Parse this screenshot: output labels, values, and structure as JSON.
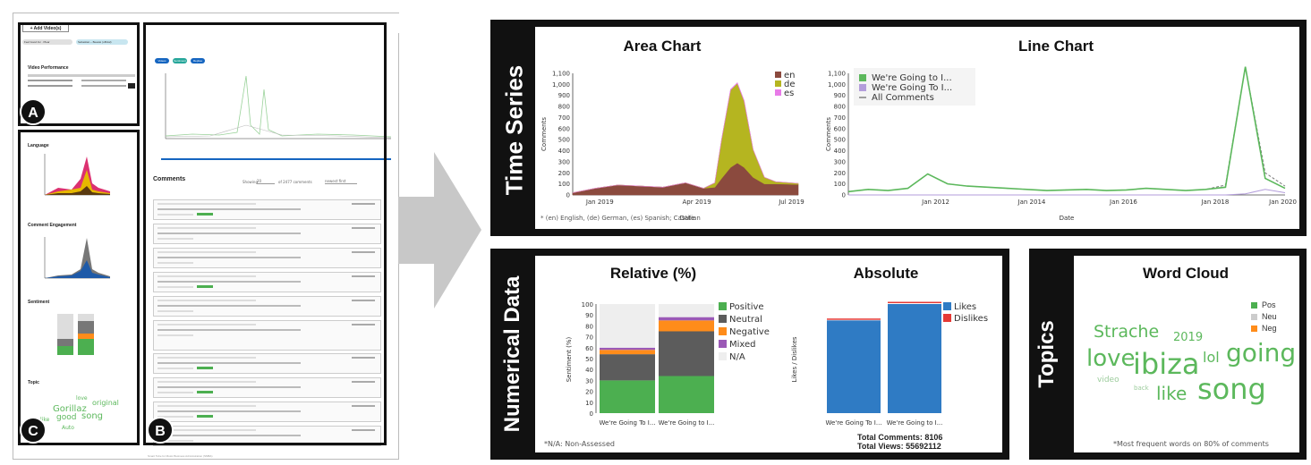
{
  "app": {
    "add_videos": "+ Add Video(s)",
    "chip_1": "Feel Good Inc · Plear",
    "chip_2": "Sebastian – Beauté (official)",
    "video_performance": "Video Performance",
    "language": "Language",
    "comment_engagement": "Comment Engagement",
    "sentiment": "Sentiment",
    "topic": "Topic",
    "comments": "Comments",
    "showing": "Showing",
    "show_count": "20",
    "of_comments": "of 2477 comments",
    "sort_label": "newest first",
    "mini_btn_1": "Videos",
    "mini_btn_2": "Sentiment",
    "mini_btn_3": "Replies",
    "mini_topic_words": [
      "love",
      "Gorillaz",
      "original",
      "like",
      "good",
      "song",
      "Auto"
    ],
    "footer_text": "Smart Tube for Music Business Administration (SMBA)"
  },
  "badges": {
    "a": "A",
    "b": "B",
    "c": "C"
  },
  "time_series": {
    "side_label": "Time Series",
    "area": {
      "title": "Area Chart",
      "ylabel": "Comments",
      "xlabel": "Date",
      "footnote": "* (en) English, (de) German, (es) Spanish; Castilian"
    },
    "line": {
      "title": "Line Chart",
      "ylabel": "Comments",
      "xlabel": "Date"
    }
  },
  "numerical": {
    "side_label": "Numerical Data",
    "relative": {
      "title": "Relative (%)",
      "ylabel": "Sentiment (%)",
      "footnote": "*N/A: Non-Assessed"
    },
    "absolute": {
      "title": "Absolute",
      "ylabel": "Likes / Dislikes",
      "total_comments": "Total Comments: 8106",
      "total_views": "Total Views: 55692112"
    }
  },
  "topics": {
    "side_label": "Topics",
    "title": "Word Cloud",
    "legend": [
      {
        "label": "Pos",
        "color": "#4caf50"
      },
      {
        "label": "Neu",
        "color": "#cccccc"
      },
      {
        "label": "Neg",
        "color": "#ff8c1a"
      }
    ],
    "words": [
      {
        "text": "Strache",
        "color": "#5cb85c"
      },
      {
        "text": "2019",
        "color": "#5cb85c"
      },
      {
        "text": "love",
        "color": "#5cb85c"
      },
      {
        "text": "ibiza",
        "color": "#5cb85c"
      },
      {
        "text": "lol",
        "color": "#5cb85c"
      },
      {
        "text": "going",
        "color": "#5cb85c"
      },
      {
        "text": "video",
        "color": "#9ccc9c"
      },
      {
        "text": "back",
        "color": "#9ccc9c"
      },
      {
        "text": "like",
        "color": "#5cb85c"
      },
      {
        "text": "song",
        "color": "#5cb85c"
      }
    ],
    "footnote": "*Most frequent words on 80% of comments"
  },
  "chart_data": [
    {
      "type": "area",
      "title": "Area Chart",
      "xlabel": "Date",
      "ylabel": "Comments",
      "x_ticks": [
        "Jan 2019",
        "Apr 2019",
        "Jul 2019"
      ],
      "y_ticks": [
        0,
        100,
        200,
        300,
        400,
        500,
        600,
        700,
        800,
        900,
        "1,000",
        "1,100"
      ],
      "ylim": [
        0,
        1100
      ],
      "x": [
        0,
        0.1,
        0.2,
        0.3,
        0.4,
        0.5,
        0.58,
        0.63,
        0.66,
        0.7,
        0.73,
        0.76,
        0.8,
        0.85,
        0.9,
        1.0
      ],
      "series": [
        {
          "name": "en",
          "color": "#8b4a3e",
          "values": [
            20,
            60,
            90,
            80,
            70,
            110,
            60,
            70,
            150,
            250,
            290,
            250,
            160,
            100,
            100,
            95
          ]
        },
        {
          "name": "de",
          "color": "#b5b520",
          "values": [
            0,
            0,
            0,
            0,
            0,
            0,
            0,
            40,
            350,
            700,
            720,
            600,
            250,
            60,
            20,
            10
          ]
        },
        {
          "name": "es",
          "color": "#e87be8",
          "values": [
            0,
            0,
            0,
            0,
            0,
            0,
            0,
            0,
            0,
            5,
            5,
            5,
            0,
            0,
            0,
            0
          ]
        }
      ],
      "legend_position": "top-right"
    },
    {
      "type": "line",
      "title": "Line Chart",
      "xlabel": "Date",
      "ylabel": "Comments",
      "x_ticks": [
        "Jan 2012",
        "Jan 2014",
        "Jan 2016",
        "Jan 2018",
        "Jan 2020"
      ],
      "y_ticks": [
        0,
        100,
        200,
        300,
        400,
        500,
        600,
        700,
        800,
        900,
        "1,000",
        "1,100"
      ],
      "ylim": [
        0,
        1100
      ],
      "series": [
        {
          "name": "We're Going to I...",
          "color": "#5cb85c",
          "values": [
            30,
            50,
            40,
            60,
            190,
            100,
            80,
            70,
            60,
            50,
            40,
            45,
            50,
            40,
            45,
            60,
            50,
            40,
            50,
            70,
            1160,
            150,
            60
          ]
        },
        {
          "name": "We're Going To I...",
          "color": "#b39ddb",
          "values": [
            0,
            0,
            0,
            0,
            0,
            0,
            0,
            0,
            0,
            0,
            0,
            0,
            0,
            0,
            0,
            0,
            0,
            0,
            0,
            0,
            10,
            50,
            20
          ]
        },
        {
          "name": "All Comments",
          "color": "#7a7a7a",
          "dashed": true,
          "values": [
            30,
            50,
            40,
            60,
            190,
            100,
            80,
            70,
            60,
            50,
            40,
            45,
            50,
            40,
            45,
            60,
            50,
            40,
            50,
            90,
            1160,
            200,
            80
          ]
        }
      ],
      "legend_position": "top-left"
    },
    {
      "type": "bar",
      "stacked": true,
      "title": "Relative (%)",
      "ylabel": "Sentiment (%)",
      "categories": [
        "We're Going To I...",
        "We're Going to I..."
      ],
      "y_ticks": [
        0,
        10,
        20,
        30,
        40,
        50,
        60,
        70,
        80,
        90,
        100
      ],
      "ylim": [
        0,
        100
      ],
      "series": [
        {
          "name": "Positive",
          "color": "#4caf50",
          "values": [
            30,
            34
          ]
        },
        {
          "name": "Neutral",
          "color": "#5c5c5c",
          "values": [
            24,
            41
          ]
        },
        {
          "name": "Negative",
          "color": "#ff8c1a",
          "values": [
            4,
            10
          ]
        },
        {
          "name": "Mixed",
          "color": "#9b59b6",
          "values": [
            2,
            3
          ]
        },
        {
          "name": "N/A",
          "color": "#eeeeee",
          "values": [
            40,
            12
          ]
        }
      ],
      "legend_position": "right"
    },
    {
      "type": "bar",
      "stacked": true,
      "title": "Absolute",
      "ylabel": "Likes / Dislikes",
      "categories": [
        "We're Going To I...",
        "We're Going to I..."
      ],
      "series": [
        {
          "name": "Likes",
          "color": "#2f7bc4",
          "values": [
            0.85,
            1.0
          ]
        },
        {
          "name": "Dislikes",
          "color": "#e53935",
          "values": [
            0.005,
            0.008
          ]
        }
      ],
      "legend_position": "right"
    }
  ]
}
